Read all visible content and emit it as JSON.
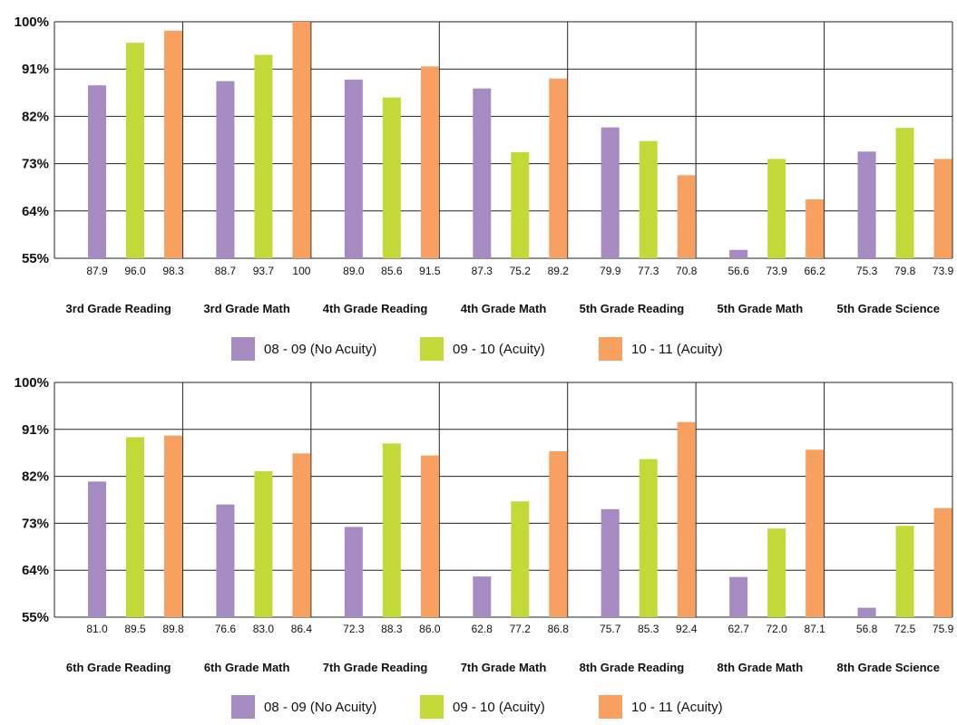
{
  "series_colors": [
    "#a68ac2",
    "#c3d937",
    "#f7a060"
  ],
  "chart_data": [
    {
      "type": "bar",
      "ylim": [
        55,
        100
      ],
      "yticks": [
        "100%",
        "91%",
        "82%",
        "73%",
        "64%",
        "55%"
      ],
      "grid": true,
      "legend_position": "bottom",
      "categories": [
        "3rd Grade Reading",
        "3rd Grade Math",
        "4th Grade Reading",
        "4th Grade Math",
        "5th Grade Reading",
        "5th Grade Math",
        "5th Grade Science"
      ],
      "series": [
        {
          "name": "08 - 09 (No Acuity)",
          "values": [
            87.9,
            88.7,
            89.0,
            87.3,
            79.9,
            56.6,
            75.3
          ]
        },
        {
          "name": "09 - 10 (Acuity)",
          "values": [
            96.0,
            93.7,
            85.6,
            75.2,
            77.3,
            73.9,
            79.8
          ]
        },
        {
          "name": "10 - 11 (Acuity)",
          "values": [
            98.3,
            100,
            91.5,
            89.2,
            70.8,
            66.2,
            73.9
          ]
        }
      ],
      "value_labels": [
        [
          "87.9",
          "96.0",
          "98.3"
        ],
        [
          "88.7",
          "93.7",
          "100"
        ],
        [
          "89.0",
          "85.6",
          "91.5"
        ],
        [
          "87.3",
          "75.2",
          "89.2"
        ],
        [
          "79.9",
          "77.3",
          "70.8"
        ],
        [
          "56.6",
          "73.9",
          "66.2"
        ],
        [
          "75.3",
          "79.8",
          "73.9"
        ]
      ]
    },
    {
      "type": "bar",
      "ylim": [
        55,
        100
      ],
      "yticks": [
        "100%",
        "91%",
        "82%",
        "73%",
        "64%",
        "55%"
      ],
      "grid": true,
      "legend_position": "bottom",
      "categories": [
        "6th Grade Reading",
        "6th Grade Math",
        "7th Grade Reading",
        "7th Grade Math",
        "8th Grade Reading",
        "8th Grade Math",
        "8th Grade Science"
      ],
      "series": [
        {
          "name": "08 - 09 (No Acuity)",
          "values": [
            81.0,
            76.6,
            72.3,
            62.8,
            75.7,
            62.7,
            56.8
          ]
        },
        {
          "name": "09 - 10 (Acuity)",
          "values": [
            89.5,
            83.0,
            88.3,
            77.2,
            85.3,
            72.0,
            72.5
          ]
        },
        {
          "name": "10 - 11 (Acuity)",
          "values": [
            89.8,
            86.4,
            86.0,
            86.8,
            92.4,
            87.1,
            75.9
          ]
        }
      ],
      "value_labels": [
        [
          "81.0",
          "89.5",
          "89.8"
        ],
        [
          "76.6",
          "83.0",
          "86.4"
        ],
        [
          "72.3",
          "88.3",
          "86.0"
        ],
        [
          "62.8",
          "77.2",
          "86.8"
        ],
        [
          "75.7",
          "85.3",
          "92.4"
        ],
        [
          "62.7",
          "72.0",
          "87.1"
        ],
        [
          "56.8",
          "72.5",
          "75.9"
        ]
      ]
    }
  ]
}
